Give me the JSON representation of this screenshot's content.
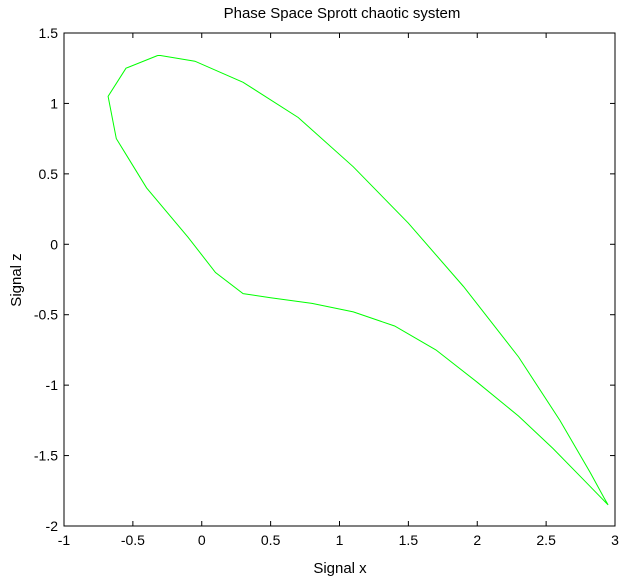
{
  "chart_data": {
    "type": "line",
    "title": "Phase Space Sprott chaotic system",
    "xlabel": "Signal x",
    "ylabel": "Signal z",
    "xlim": [
      -1,
      3
    ],
    "ylim": [
      -2,
      1.5
    ],
    "xticks": [
      -1,
      -0.5,
      0,
      0.5,
      1,
      1.5,
      2,
      2.5,
      3
    ],
    "xtick_labels": [
      "-1",
      "-0.5",
      "0",
      "0.5",
      "1",
      "1.5",
      "2",
      "2.5",
      "3"
    ],
    "yticks": [
      -2,
      -1.5,
      -1,
      -0.5,
      0,
      0.5,
      1,
      1.5
    ],
    "ytick_labels": [
      "-2",
      "-1.5",
      "-1",
      "-0.5",
      "0",
      "0.5",
      "1",
      "1.5"
    ],
    "grid": false,
    "legend": "none",
    "series": [
      {
        "color": "#00ff00",
        "x": [
          -0.32,
          -0.55,
          -0.68,
          -0.62,
          -0.4,
          -0.1,
          0.1,
          0.3,
          0.5,
          0.8,
          1.1,
          1.4,
          1.7,
          2.0,
          2.3,
          2.55,
          2.75,
          2.9,
          2.95,
          2.92,
          2.82,
          2.6,
          2.3,
          1.9,
          1.5,
          1.1,
          0.7,
          0.3,
          -0.05,
          -0.3
        ],
        "y": [
          1.34,
          1.25,
          1.05,
          0.75,
          0.4,
          0.05,
          -0.2,
          -0.35,
          -0.38,
          -0.42,
          -0.48,
          -0.58,
          -0.75,
          -0.98,
          -1.22,
          -1.45,
          -1.65,
          -1.8,
          -1.85,
          -1.8,
          -1.62,
          -1.25,
          -0.8,
          -0.3,
          0.15,
          0.55,
          0.9,
          1.15,
          1.3,
          1.34
        ]
      }
    ]
  }
}
